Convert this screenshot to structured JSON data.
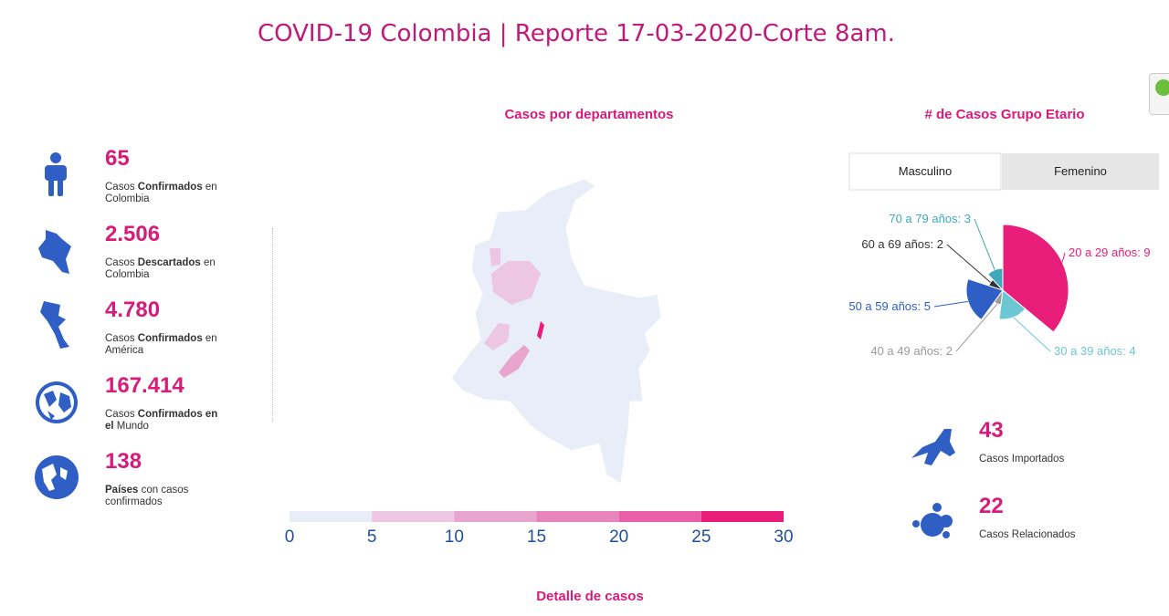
{
  "header": {
    "title": "COVID-19 Colombia | Reporte 17-03-2020-Corte 8am."
  },
  "stats": [
    {
      "number": "65",
      "label": [
        {
          "text": "Casos "
        },
        {
          "text": "Confirmados",
          "bold": true
        },
        {
          "text": " en Colombia"
        }
      ]
    },
    {
      "number": "2.506",
      "label": [
        {
          "text": "Casos "
        },
        {
          "text": "Descartados",
          "bold": true
        },
        {
          "text": " en Colombia"
        }
      ]
    },
    {
      "number": "4.780",
      "label": [
        {
          "text": "Casos "
        },
        {
          "text": "Confirmados",
          "bold": true
        },
        {
          "text": " en América"
        }
      ]
    },
    {
      "number": "167.414",
      "label": [
        {
          "text": "Casos "
        },
        {
          "text": "Confirmados en el",
          "bold": true
        },
        {
          "text": " Mundo"
        }
      ]
    },
    {
      "number": "138",
      "label": [
        {
          "text": "Países",
          "bold": true
        },
        {
          "text": " con casos confirmados"
        }
      ]
    }
  ],
  "map": {
    "title": "Casos por departamentos",
    "legend": {
      "ticks": [
        0,
        5,
        10,
        15,
        20,
        25,
        30
      ],
      "colors": [
        "#e8edf8",
        "#ecc6e2",
        "#e8a6cf",
        "#e884bd",
        "#e85fa8",
        "#e91e7a"
      ]
    }
  },
  "age_chart": {
    "title": "# de Casos Grupo Etario",
    "tabs": [
      "Masculino",
      "Femenino"
    ],
    "active_tab": 0,
    "type": "variablepie",
    "labels": [
      "20 a 29 años: 9",
      "30 a 39 años: 4",
      "40 a 49 años: 2",
      "50 a 59 años: 5",
      "60 a 69 años: 2",
      "70 a 79 años: 3"
    ],
    "values": [
      9,
      4,
      2,
      5,
      2,
      3
    ],
    "colors": [
      "#e91e7a",
      "#6cc7d3",
      "#9a9a9a",
      "#2f5fc4",
      "#333333",
      "#3ea9b9"
    ]
  },
  "side_stats": [
    {
      "number": "43",
      "label": "Casos Importados"
    },
    {
      "number": "22",
      "label": "Casos Relacionados"
    }
  ],
  "footer": {
    "title": "Detalle de casos"
  }
}
